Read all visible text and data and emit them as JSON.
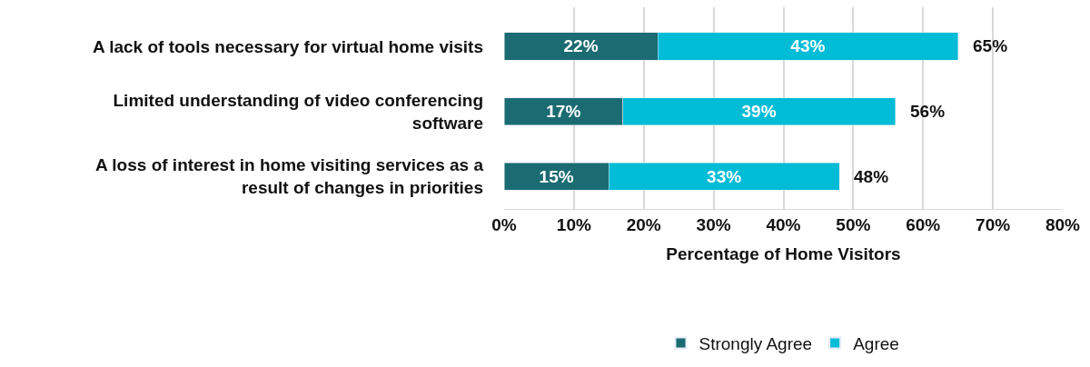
{
  "chart_data": {
    "type": "bar",
    "orientation": "horizontal",
    "stacked": true,
    "categories": [
      "A lack of tools necessary for virtual home visits",
      "Limited understanding of video conferencing software",
      "A loss of interest in home visiting services as a result of changes in priorities"
    ],
    "series": [
      {
        "name": "Strongly Agree",
        "color": "#1b6b72",
        "values": [
          22,
          17,
          15
        ],
        "value_labels": [
          "22%",
          "17%",
          "15%"
        ]
      },
      {
        "name": "Agree",
        "color": "#00bcd6",
        "values": [
          43,
          39,
          33
        ],
        "value_labels": [
          "43%",
          "39%",
          "33%"
        ]
      }
    ],
    "totals": [
      "65%",
      "56%",
      "48%"
    ],
    "xlabel": "Percentage of Home Visitors",
    "xlim": [
      0,
      80
    ],
    "xticks": [
      {
        "value": 0,
        "label": "0%"
      },
      {
        "value": 10,
        "label": "10%"
      },
      {
        "value": 20,
        "label": "20%"
      },
      {
        "value": 30,
        "label": "30%"
      },
      {
        "value": 40,
        "label": "40%"
      },
      {
        "value": 50,
        "label": "50%"
      },
      {
        "value": 60,
        "label": "60%"
      },
      {
        "value": 70,
        "label": "70%"
      },
      {
        "value": 80,
        "label": "80%"
      }
    ],
    "grid": "x",
    "legend": "bottom"
  }
}
